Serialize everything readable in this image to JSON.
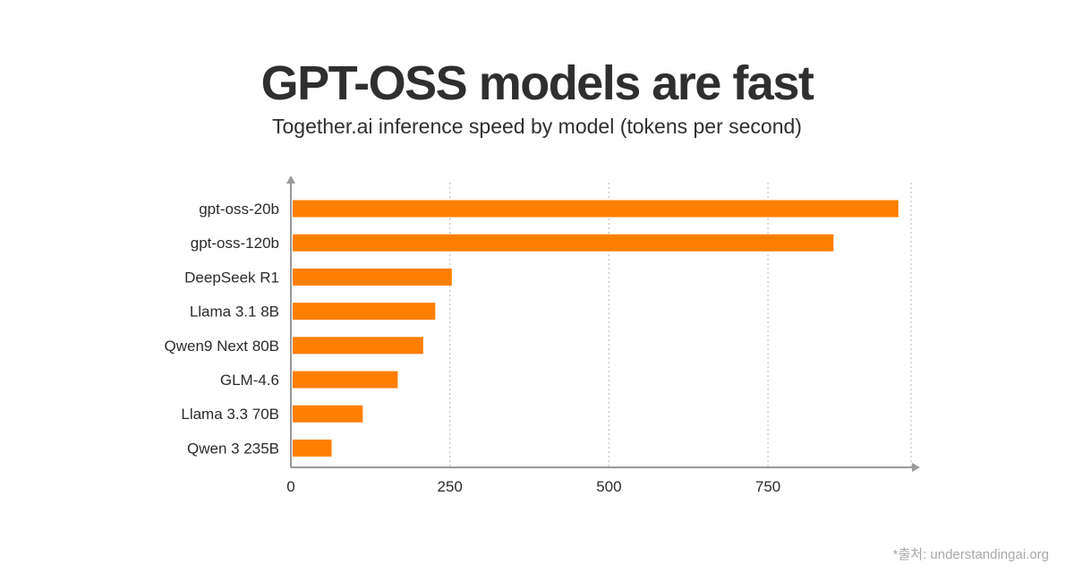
{
  "colors": {
    "bar": "#ff7f00",
    "axis": "#999999",
    "grid": "#c8c8c8"
  },
  "chart_data": {
    "type": "bar",
    "orientation": "horizontal",
    "title": "GPT-OSS models are fast",
    "subtitle": "Together.ai inference speed by model (tokens per second)",
    "xlabel": "",
    "ylabel": "",
    "categories": [
      "gpt-oss-20b",
      "gpt-oss-120b",
      "DeepSeek R1",
      "Llama 3.1 8B",
      "Qwen9 Next 80B",
      "GLM-4.6",
      "Llama 3.3 70B",
      "Qwen 3 235B"
    ],
    "values": [
      955,
      853,
      253,
      227,
      208,
      168,
      113,
      64
    ],
    "xlim": [
      0,
      975
    ],
    "xticks": [
      0,
      250,
      500,
      750
    ],
    "grid": "vertical"
  },
  "source": "*출처: understandingai.org"
}
